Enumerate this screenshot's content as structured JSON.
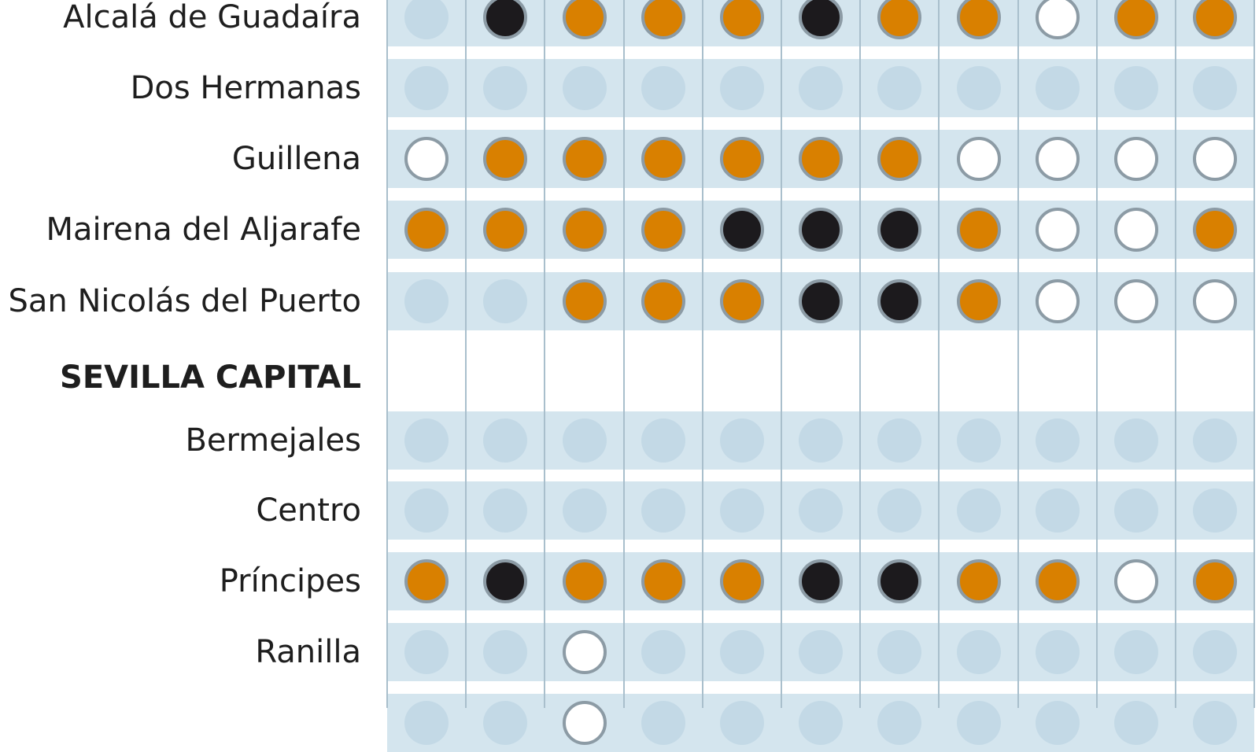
{
  "chart_data": {
    "type": "table",
    "title": "",
    "columns_count": 11,
    "legend_states": {
      "e": "no data",
      "o": "orange",
      "b": "black",
      "w": "white"
    },
    "colors": {
      "o": "#d98000",
      "b": "#1c1a1d",
      "w": "#ffffff",
      "e": "#c3d9e6",
      "band": "#d4e5ee",
      "ring": "#8c9ba5"
    },
    "rows": [
      {
        "label": "Alcalá de Guadaíra",
        "values": [
          "e",
          "b",
          "o",
          "o",
          "o",
          "b",
          "o",
          "o",
          "w",
          "o",
          "o"
        ]
      },
      {
        "label": "Dos Hermanas",
        "values": [
          "e",
          "e",
          "e",
          "e",
          "e",
          "e",
          "e",
          "e",
          "e",
          "e",
          "e"
        ]
      },
      {
        "label": "Guillena",
        "values": [
          "w",
          "o",
          "o",
          "o",
          "o",
          "o",
          "o",
          "w",
          "w",
          "w",
          "w"
        ]
      },
      {
        "label": "Mairena del Aljarafe",
        "values": [
          "o",
          "o",
          "o",
          "o",
          "b",
          "b",
          "b",
          "o",
          "w",
          "w",
          "o"
        ]
      },
      {
        "label": "San Nicolás del Puerto",
        "values": [
          "e",
          "e",
          "o",
          "o",
          "o",
          "b",
          "b",
          "o",
          "w",
          "w",
          "w"
        ]
      },
      {
        "label": "SEVILLA CAPITAL",
        "section": true
      },
      {
        "label": "Bermejales",
        "values": [
          "e",
          "e",
          "e",
          "e",
          "e",
          "e",
          "e",
          "e",
          "e",
          "e",
          "e"
        ]
      },
      {
        "label": "Centro",
        "values": [
          "e",
          "e",
          "e",
          "e",
          "e",
          "e",
          "e",
          "e",
          "e",
          "e",
          "e"
        ]
      },
      {
        "label": "Príncipes",
        "values": [
          "o",
          "b",
          "o",
          "o",
          "o",
          "b",
          "b",
          "o",
          "o",
          "w",
          "o"
        ]
      },
      {
        "label": "Ranilla",
        "values": [
          "e",
          "e",
          "w",
          "e",
          "e",
          "e",
          "e",
          "e",
          "e",
          "e",
          "e"
        ]
      },
      {
        "label": "",
        "values": [
          "e",
          "e",
          "w",
          "e",
          "e",
          "e",
          "e",
          "e",
          "e",
          "e",
          "e"
        ]
      }
    ]
  }
}
